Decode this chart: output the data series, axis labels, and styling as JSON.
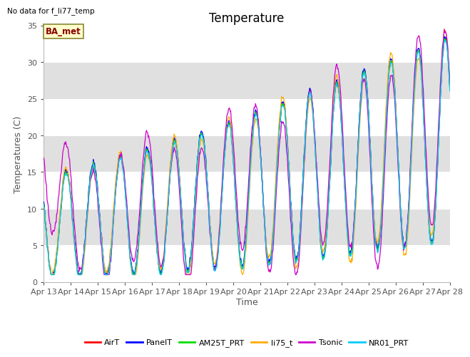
{
  "title": "Temperature",
  "ylabel": "Temperatures (C)",
  "xlabel": "Time",
  "no_data_text": "No data for f_li77_temp",
  "site_label": "BA_met",
  "ylim": [
    0,
    35
  ],
  "yticks": [
    0,
    5,
    10,
    15,
    20,
    25,
    30,
    35
  ],
  "xtick_labels": [
    "Apr 13",
    "Apr 14",
    "Apr 15",
    "Apr 16",
    "Apr 17",
    "Apr 18",
    "Apr 19",
    "Apr 20",
    "Apr 21",
    "Apr 22",
    "Apr 23",
    "Apr 24",
    "Apr 25",
    "Apr 26",
    "Apr 27",
    "Apr 28"
  ],
  "legend": [
    "AirT",
    "PanelT",
    "AM25T_PRT",
    "li75_t",
    "Tsonic",
    "NR01_PRT"
  ],
  "colors": {
    "AirT": "#ff0000",
    "PanelT": "#0000ff",
    "AM25T_PRT": "#00dd00",
    "li75_t": "#ffaa00",
    "Tsonic": "#cc00cc",
    "NR01_PRT": "#00ccff"
  },
  "background_color": "#ffffff",
  "grid_band_color": "#e0e0e0",
  "title_fontsize": 12,
  "label_fontsize": 9,
  "tick_fontsize": 8,
  "n_days": 15,
  "n_per_day": 48
}
